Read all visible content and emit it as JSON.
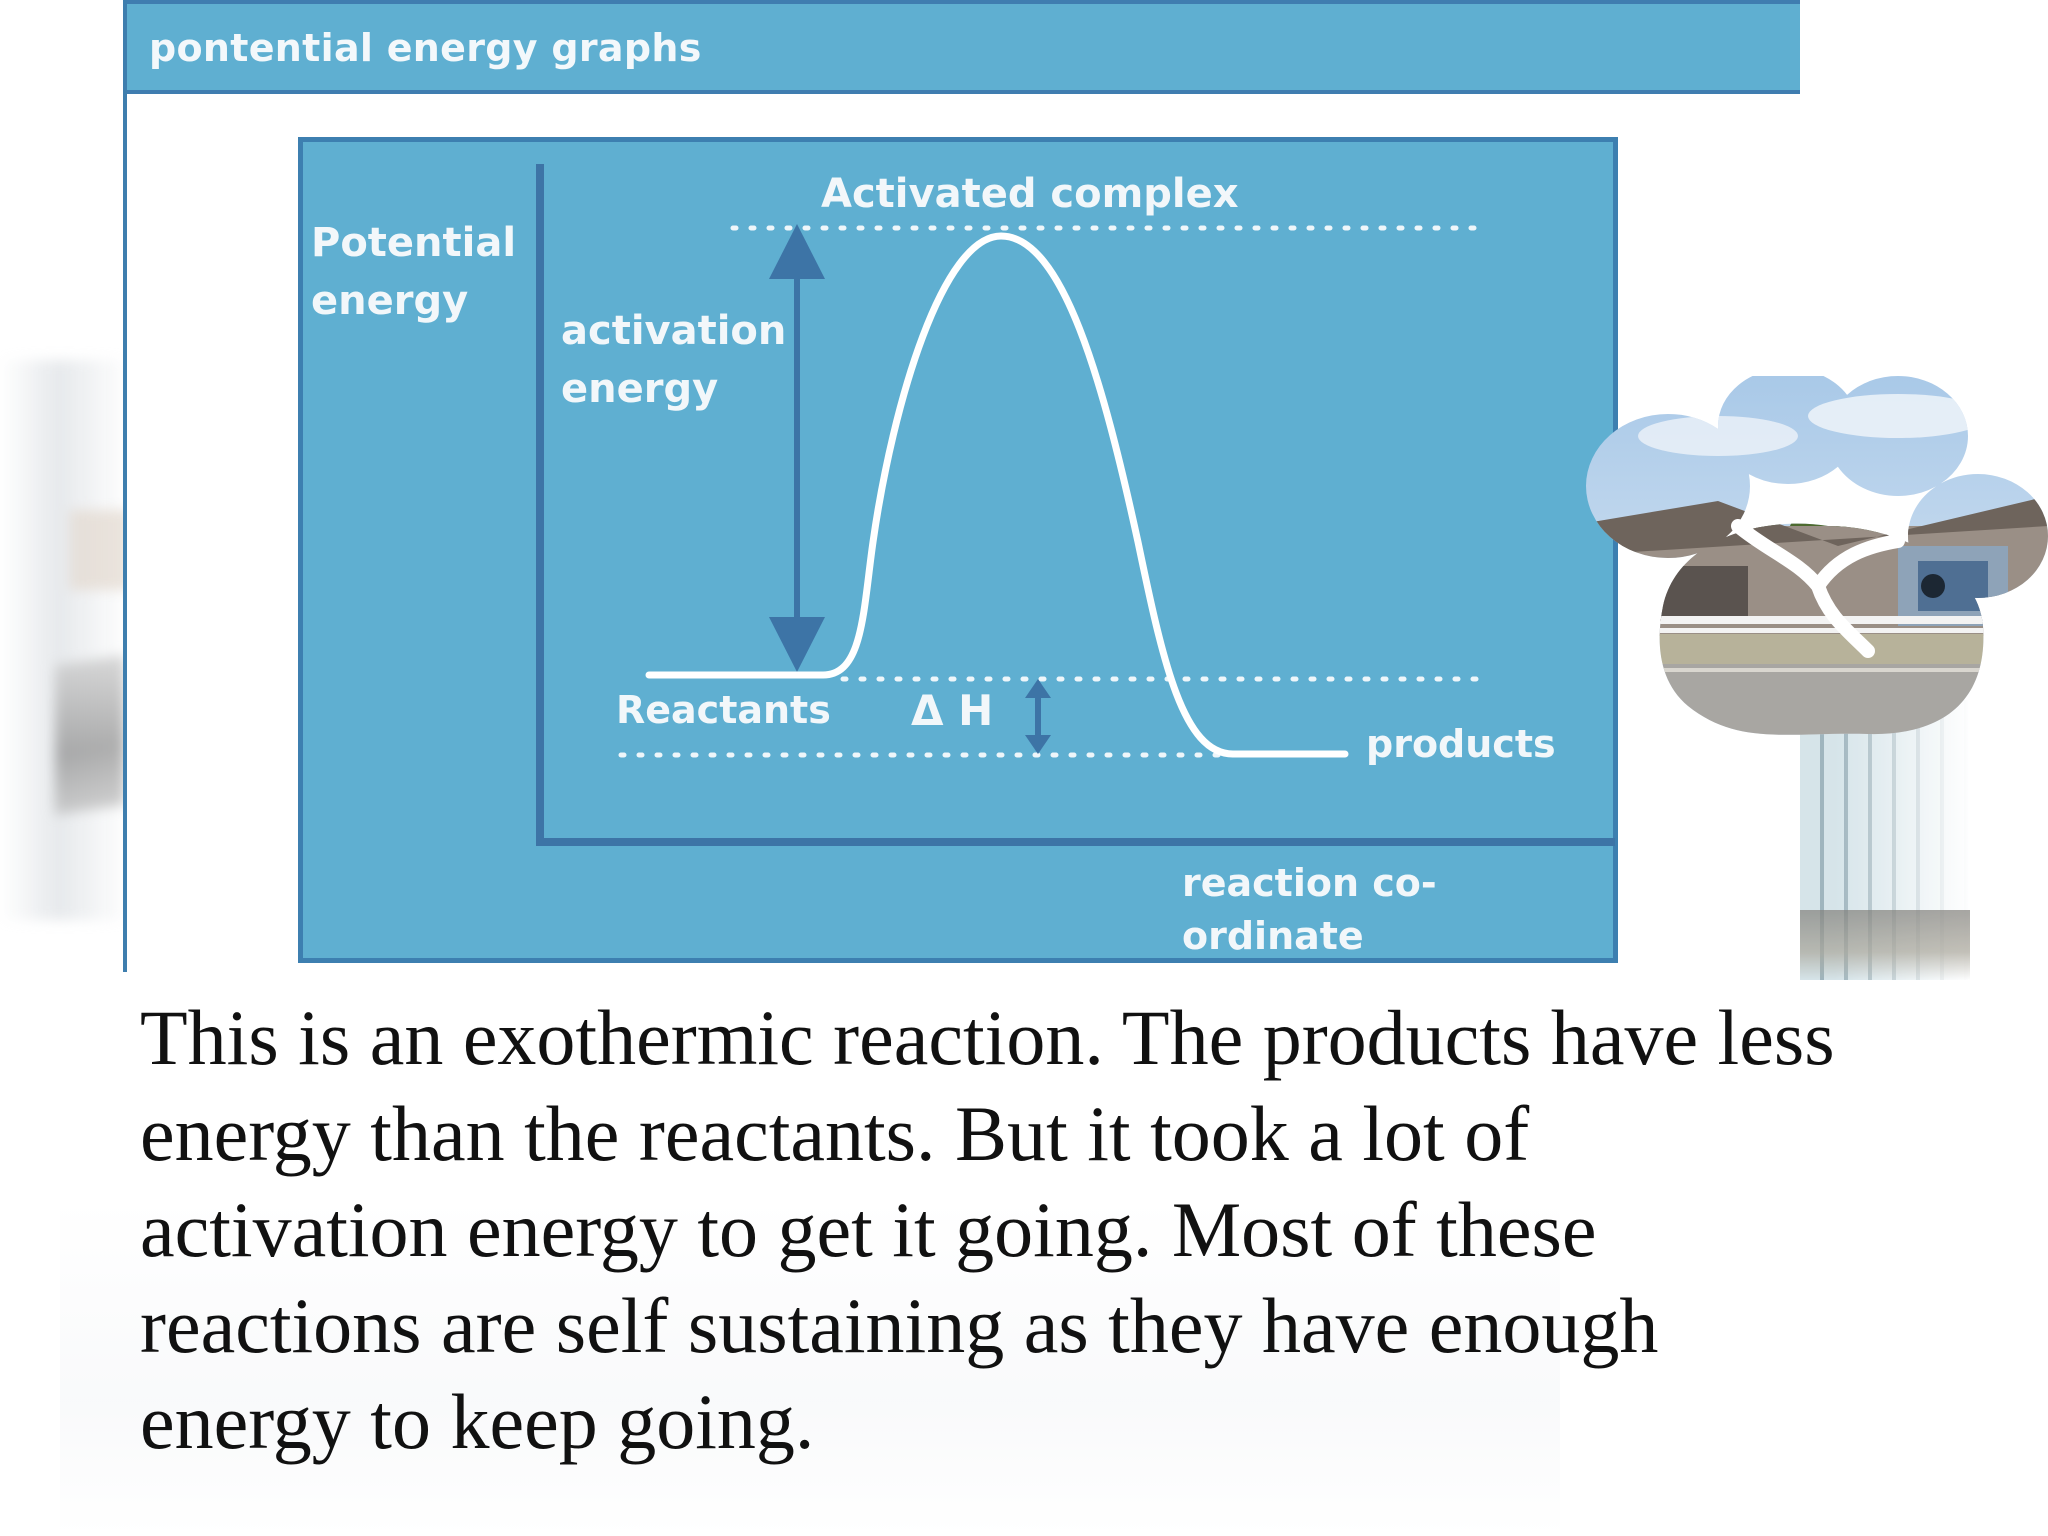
{
  "slide": {
    "title": "pontential energy graphs",
    "body": "This is an exothermic reaction.  The products have less energy than the reactants.   But it took a lot of activation energy to get it going.  Most of these reactions are self sustaining as they have enough energy to keep going."
  },
  "diagram": {
    "y_label": "Potential\nenergy",
    "x_label": "reaction co-ordinate",
    "activation_energy_label": "activation\nenergy",
    "peak_label": "Activated complex",
    "reactants_label": "Reactants",
    "products_label": "products",
    "enthalpy_label": "Δ H",
    "colors": {
      "panel": "#5fafd1",
      "border": "#3d7fb0",
      "curve": "#ffffff",
      "arrow": "#3d74a6"
    }
  }
}
